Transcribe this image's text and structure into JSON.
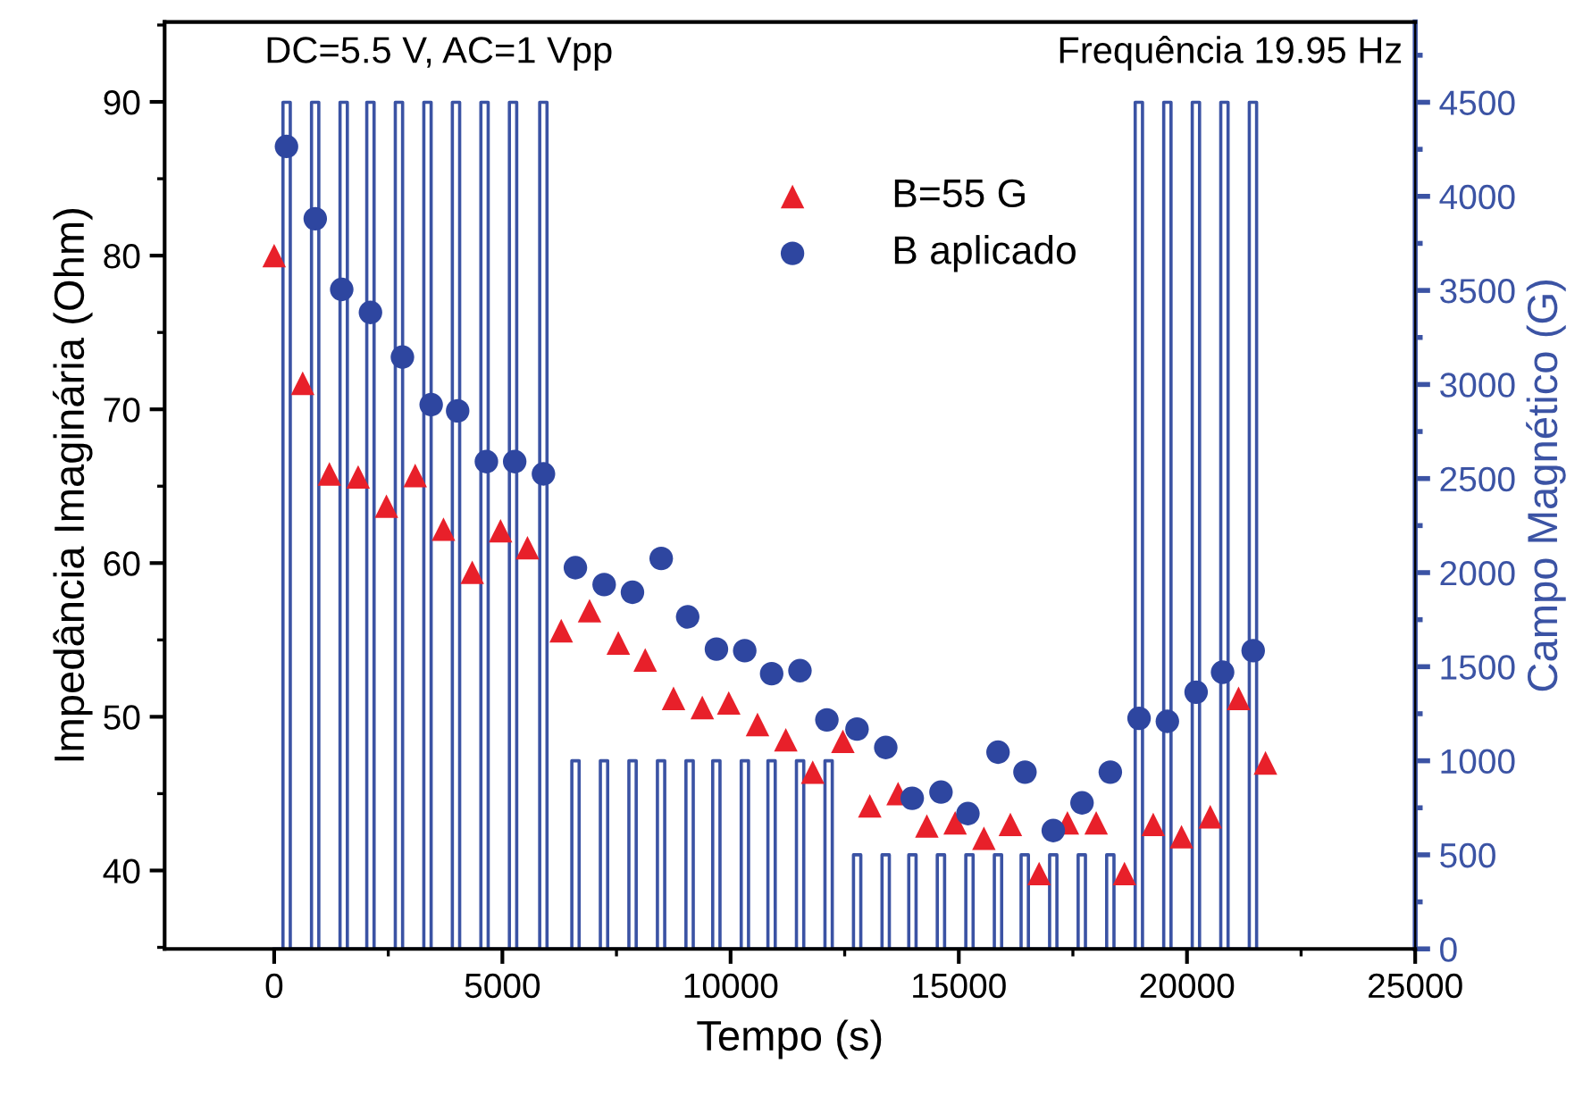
{
  "chart_data": {
    "type": "scatter",
    "xlabel": "Tempo (s)",
    "ylabel": "Impedância Imaginária (Ohm)",
    "y2label": "Campo Magnético (G)",
    "annotations": [
      "DC=5.5 V, AC=1 Vpp",
      "Frequência 19.95 Hz"
    ],
    "xlim": [
      -2400,
      25000
    ],
    "xticks": [
      0,
      5000,
      10000,
      15000,
      20000,
      25000
    ],
    "ylim": [
      34.9,
      95.2
    ],
    "yticks": [
      40,
      50,
      60,
      70,
      80,
      90
    ],
    "y2lim": [
      0,
      4927
    ],
    "y2ticks": [
      0,
      500,
      1000,
      1500,
      2000,
      2500,
      3000,
      3500,
      4000,
      4500
    ],
    "grid": false,
    "legend": "top",
    "series": [
      {
        "name": "B=55 G",
        "color": "#e8202a",
        "marker": "triangle",
        "x": [
          0,
          625,
          1210,
          1840,
          2460,
          3090,
          3710,
          4340,
          4960,
          5550,
          6290,
          6910,
          7540,
          8130,
          8750,
          9380,
          9960,
          10590,
          11210,
          11800,
          12460,
          13050,
          13670,
          14300,
          14920,
          15550,
          16130,
          16760,
          17380,
          18010,
          18630,
          19260,
          19880,
          20510,
          21130,
          21720
        ],
        "values": [
          80.0,
          71.7,
          65.8,
          65.6,
          63.7,
          65.7,
          62.2,
          59.4,
          62.1,
          61.0,
          55.6,
          56.9,
          54.8,
          53.7,
          51.2,
          50.6,
          50.9,
          49.5,
          48.5,
          46.4,
          48.4,
          44.2,
          45.0,
          42.9,
          43.1,
          42.1,
          43.0,
          39.8,
          43.1,
          43.1,
          39.8,
          43.0,
          42.2,
          43.5,
          51.2,
          47.0
        ]
      },
      {
        "name": "B aplicado",
        "color": "#2e46a0",
        "marker": "circle",
        "x": [
          270,
          900,
          1480,
          2110,
          2810,
          3440,
          4020,
          4650,
          5270,
          5900,
          6600,
          7230,
          7850,
          8480,
          9060,
          9690,
          10310,
          10900,
          11520,
          12110,
          12770,
          13400,
          13980,
          14610,
          15200,
          15860,
          16450,
          17070,
          17700,
          18320,
          18950,
          19570,
          20200,
          20780,
          21450
        ],
        "values": [
          87.1,
          82.4,
          77.8,
          76.3,
          73.4,
          70.3,
          69.9,
          66.6,
          66.6,
          65.8,
          59.7,
          58.6,
          58.1,
          60.3,
          56.5,
          54.4,
          54.3,
          52.8,
          53.0,
          49.8,
          49.2,
          48.0,
          44.7,
          45.1,
          43.7,
          47.7,
          46.4,
          42.6,
          44.4,
          46.4,
          49.9,
          49.7,
          51.6,
          52.9,
          54.3
        ]
      },
      {
        "type": "step",
        "axis": "y2",
        "color": "#3b53a4",
        "x": [
          0,
          193,
          353,
          818,
          978,
          1443,
          1603,
          2029,
          2189,
          2654,
          2814,
          3279,
          3439,
          3904,
          4064,
          4529,
          4689,
          5154,
          5314,
          5818,
          5978,
          6522,
          6682,
          7147,
          7307,
          7772,
          7932,
          8397,
          8557,
          9022,
          9182,
          9608,
          9768,
          10233,
          10393,
          10818,
          10978,
          11443,
          11603,
          12068,
          12228,
          12693,
          12853,
          13318,
          13478,
          13904,
          14064,
          14529,
          14689,
          15154,
          15314,
          15779,
          15939,
          16365,
          16525,
          16990,
          17150,
          17615,
          17775,
          18240,
          18400,
          18865,
          19025,
          19490,
          19650,
          20115,
          20275,
          20740,
          20900,
          21365,
          21525
        ],
        "values": [
          0,
          4500,
          0,
          4500,
          0,
          4500,
          0,
          4500,
          0,
          4500,
          0,
          4500,
          0,
          4500,
          0,
          4500,
          0,
          4500,
          0,
          4500,
          0,
          1000,
          0,
          1000,
          0,
          1000,
          0,
          1000,
          0,
          1000,
          0,
          1000,
          0,
          1000,
          0,
          1000,
          0,
          1000,
          0,
          1000,
          0,
          500,
          0,
          500,
          0,
          500,
          0,
          500,
          0,
          500,
          0,
          500,
          0,
          500,
          0,
          500,
          0,
          500,
          0,
          500,
          0,
          4500,
          0,
          4500,
          0,
          4500,
          0,
          4500,
          0,
          4500,
          0
        ]
      }
    ]
  }
}
